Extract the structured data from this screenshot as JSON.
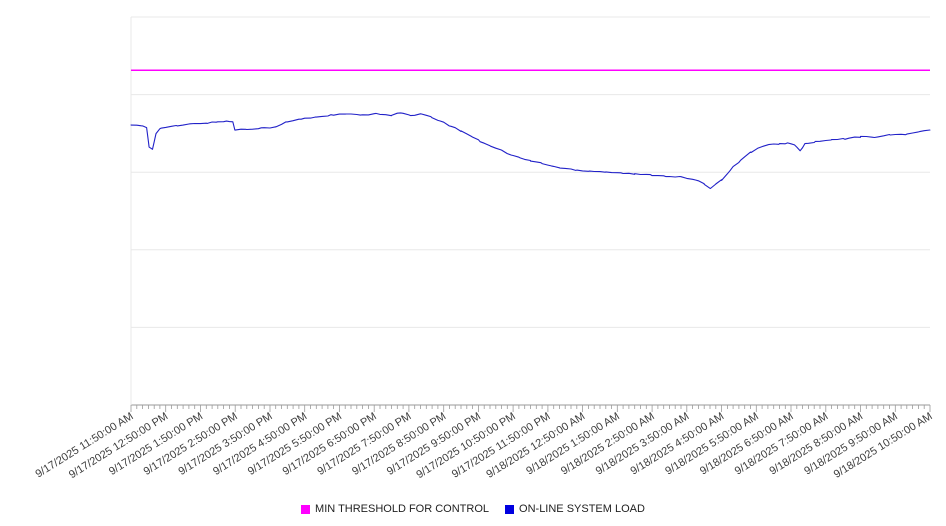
{
  "chart_data": {
    "type": "line",
    "title": "",
    "xlabel": "",
    "ylabel": "",
    "y_axis_labels_visible": false,
    "ylim": [
      0,
      100
    ],
    "y_gridlines": [
      0,
      20,
      40,
      60,
      80,
      100
    ],
    "grid": "horizontal",
    "legend_position": "bottom-center",
    "x_hours_span": 23,
    "x_minor_tick_interval_minutes": 10,
    "noise_amplitude": 0.15,
    "x_labels": [
      "9/17/2025 11:50:00 AM",
      "9/17/2025 12:50:00 PM",
      "9/17/2025 1:50:00 PM",
      "9/17/2025 2:50:00 PM",
      "9/17/2025 3:50:00 PM",
      "9/17/2025 4:50:00 PM",
      "9/17/2025 5:50:00 PM",
      "9/17/2025 6:50:00 PM",
      "9/17/2025 7:50:00 PM",
      "9/17/2025 8:50:00 PM",
      "9/17/2025 9:50:00 PM",
      "9/17/2025 10:50:00 PM",
      "9/17/2025 11:50:00 PM",
      "9/18/2025 12:50:00 AM",
      "9/18/2025 1:50:00 AM",
      "9/18/2025 2:50:00 AM",
      "9/18/2025 3:50:00 AM",
      "9/18/2025 4:50:00 AM",
      "9/18/2025 5:50:00 AM",
      "9/18/2025 6:50:00 AM",
      "9/18/2025 7:50:00 AM",
      "9/18/2025 8:50:00 AM",
      "9/18/2025 9:50:00 AM",
      "9/18/2025 10:50:00 AM"
    ],
    "series": [
      {
        "name": "MIN THRESHOLD FOR CONTROL",
        "type": "constant",
        "value": 86.3,
        "color": "#FF00FF"
      },
      {
        "name": "ON-LINE SYSTEM LOAD",
        "type": "points",
        "color": "#2121C8",
        "points": [
          [
            0,
            72.2
          ],
          [
            0.3,
            71.9
          ],
          [
            0.45,
            71.5
          ],
          [
            0.52,
            66.5
          ],
          [
            0.62,
            66.0
          ],
          [
            0.72,
            70.1
          ],
          [
            0.86,
            71.4
          ],
          [
            1.3,
            71.9
          ],
          [
            1.7,
            72.4
          ],
          [
            2.2,
            72.7
          ],
          [
            2.45,
            72.9
          ],
          [
            2.75,
            73.2
          ],
          [
            2.93,
            72.9
          ],
          [
            2.99,
            70.9
          ],
          [
            3.3,
            71.1
          ],
          [
            3.75,
            71.4
          ],
          [
            4.17,
            71.6
          ],
          [
            4.46,
            72.9
          ],
          [
            4.9,
            73.7
          ],
          [
            5.3,
            74.2
          ],
          [
            5.75,
            74.7
          ],
          [
            6.2,
            75.0
          ],
          [
            6.6,
            74.7
          ],
          [
            7.05,
            75.0
          ],
          [
            7.5,
            74.7
          ],
          [
            7.76,
            75.4
          ],
          [
            8.05,
            74.5
          ],
          [
            8.35,
            75.0
          ],
          [
            8.63,
            74.2
          ],
          [
            8.9,
            73.2
          ],
          [
            9.2,
            71.9
          ],
          [
            9.5,
            70.6
          ],
          [
            9.8,
            69.3
          ],
          [
            10.05,
            68.0
          ],
          [
            10.35,
            66.8
          ],
          [
            10.65,
            65.7
          ],
          [
            10.95,
            64.4
          ],
          [
            11.2,
            63.7
          ],
          [
            11.5,
            62.9
          ],
          [
            11.8,
            62.4
          ],
          [
            12.1,
            61.6
          ],
          [
            12.35,
            61.1
          ],
          [
            12.8,
            60.6
          ],
          [
            13.2,
            60.3
          ],
          [
            13.65,
            60.1
          ],
          [
            14.1,
            59.8
          ],
          [
            14.5,
            59.5
          ],
          [
            14.95,
            59.3
          ],
          [
            15.4,
            59.0
          ],
          [
            15.8,
            58.8
          ],
          [
            16.25,
            58.0
          ],
          [
            16.5,
            56.9
          ],
          [
            16.68,
            55.9
          ],
          [
            16.82,
            56.9
          ],
          [
            17.0,
            58.0
          ],
          [
            17.25,
            60.6
          ],
          [
            17.55,
            63.1
          ],
          [
            17.85,
            65.2
          ],
          [
            18.05,
            66.2
          ],
          [
            18.35,
            67.0
          ],
          [
            18.65,
            67.3
          ],
          [
            18.9,
            67.5
          ],
          [
            19.1,
            67.0
          ],
          [
            19.26,
            65.5
          ],
          [
            19.4,
            67.3
          ],
          [
            19.7,
            67.8
          ],
          [
            20.15,
            68.3
          ],
          [
            20.55,
            68.6
          ],
          [
            21.0,
            69.1
          ],
          [
            21.4,
            69.1
          ],
          [
            21.85,
            69.6
          ],
          [
            22.3,
            69.8
          ],
          [
            22.7,
            70.4
          ],
          [
            23,
            70.9
          ]
        ]
      }
    ]
  },
  "colors": {
    "background": "#ffffff",
    "gridline": "#e8e8e8",
    "axis": "#9a9a9a",
    "label_text": "#3c3c3c"
  },
  "legend": {
    "items": [
      {
        "label": "MIN THRESHOLD FOR CONTROL",
        "color": "#FF00FF"
      },
      {
        "label": "ON-LINE SYSTEM LOAD",
        "color": "#0000E0"
      }
    ]
  }
}
